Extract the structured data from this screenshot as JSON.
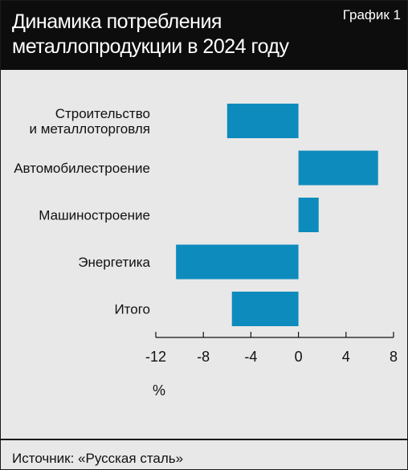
{
  "header": {
    "title": "Динамика потребления\nметаллопродукции в 2024 году",
    "label": "График 1"
  },
  "footer": {
    "source": "Источник: «Русская сталь»"
  },
  "colors": {
    "bar": "#0e8bbd",
    "header_bg": "#0d0d0d",
    "plot_bg": "#e8e8e8"
  },
  "chart_data": {
    "type": "bar",
    "orientation": "horizontal",
    "title": "Динамика потребления металлопродукции в 2024 году",
    "categories": [
      "Строительство\nи металлоторговля",
      "Автомобилестроение",
      "Машиностроение",
      "Энергетика",
      "Итого"
    ],
    "values": [
      -6,
      6.7,
      1.7,
      -10.3,
      -5.6
    ],
    "xlabel": "%",
    "xlim": [
      -12,
      8
    ],
    "xticks": [
      -12,
      -8,
      -4,
      0,
      4,
      8
    ],
    "xtick_labels": [
      "-12",
      "-8",
      "-4",
      "0",
      "4",
      "8"
    ],
    "grid": false,
    "legend": "none"
  }
}
